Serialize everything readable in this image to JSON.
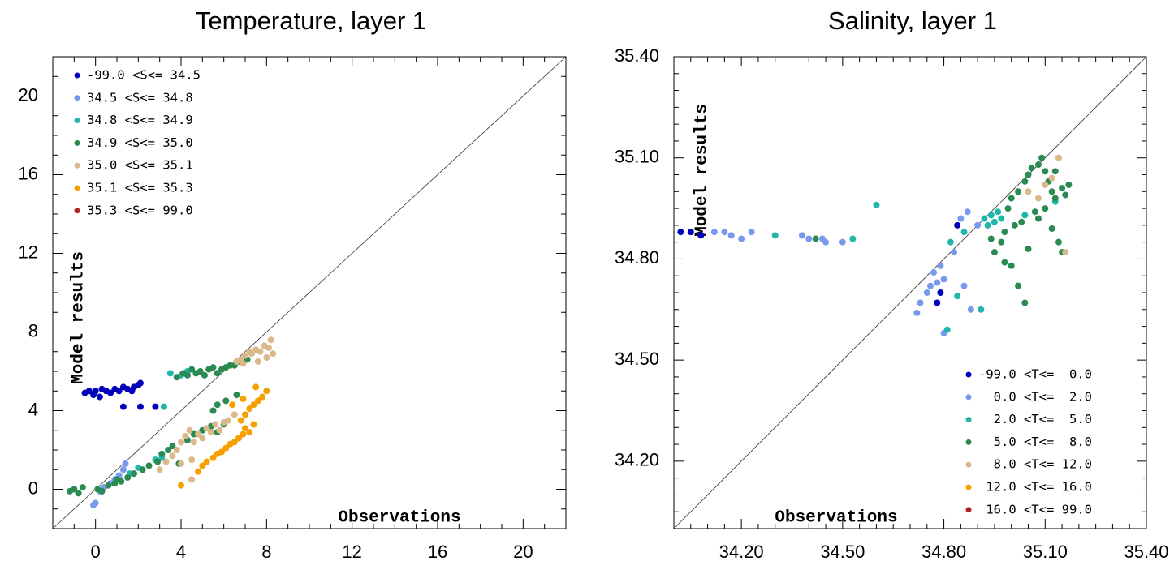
{
  "chart_data": [
    {
      "type": "scatter",
      "title": "Temperature, layer 1",
      "xlabel": "Observations",
      "ylabel": "Model results",
      "xlim": [
        -2,
        22
      ],
      "ylim": [
        -2,
        22
      ],
      "xticks": [
        "0",
        "4",
        "8",
        "12",
        "16",
        "20"
      ],
      "xtick_values": [
        0,
        4,
        8,
        12,
        16,
        20
      ],
      "yticks": [
        "0",
        "4",
        "8",
        "12",
        "16",
        "20"
      ],
      "ytick_values": [
        0,
        4,
        8,
        12,
        16,
        20
      ],
      "minor_step": 1,
      "legend_position": "top-left",
      "identity_line": true,
      "grid": false,
      "series": [
        {
          "name": "-99.0 <S<= 34.5",
          "color": "#0000bb",
          "points": [
            [
              -0.5,
              4.9
            ],
            [
              -0.3,
              5.0
            ],
            [
              -0.1,
              4.8
            ],
            [
              0.0,
              5.0
            ],
            [
              0.2,
              4.7
            ],
            [
              0.3,
              5.1
            ],
            [
              0.5,
              5.0
            ],
            [
              0.7,
              4.9
            ],
            [
              0.9,
              5.1
            ],
            [
              1.1,
              5.0
            ],
            [
              1.3,
              5.2
            ],
            [
              1.5,
              5.1
            ],
            [
              1.7,
              5.0
            ],
            [
              1.8,
              5.2
            ],
            [
              2.0,
              5.3
            ],
            [
              2.1,
              5.4
            ],
            [
              1.3,
              4.2
            ],
            [
              2.1,
              4.2
            ],
            [
              2.8,
              4.2
            ]
          ]
        },
        {
          "name": "34.5 <S<= 34.8",
          "color": "#7799ee",
          "points": [
            [
              -0.1,
              -0.8
            ],
            [
              0.0,
              -0.7
            ],
            [
              0.2,
              -0.1
            ],
            [
              0.4,
              0.1
            ],
            [
              0.7,
              0.3
            ],
            [
              0.9,
              0.5
            ],
            [
              1.1,
              0.7
            ],
            [
              1.3,
              1.0
            ],
            [
              1.4,
              1.3
            ]
          ]
        },
        {
          "name": "34.8 <S<= 34.9",
          "color": "#22b5aa",
          "points": [
            [
              1.6,
              0.8
            ],
            [
              2.0,
              1.1
            ],
            [
              2.8,
              1.5
            ],
            [
              3.1,
              1.6
            ],
            [
              3.2,
              4.2
            ],
            [
              3.5,
              5.9
            ],
            [
              4.0,
              5.8
            ],
            [
              4.3,
              6.0
            ]
          ]
        },
        {
          "name": "34.9 <S<= 35.0",
          "color": "#2b8a52",
          "points": [
            [
              -1.2,
              -0.1
            ],
            [
              -1.0,
              0.0
            ],
            [
              -0.8,
              -0.2
            ],
            [
              -0.6,
              0.1
            ],
            [
              0.1,
              0.0
            ],
            [
              0.3,
              -0.1
            ],
            [
              0.6,
              0.2
            ],
            [
              0.9,
              0.3
            ],
            [
              1.0,
              0.5
            ],
            [
              1.2,
              0.4
            ],
            [
              1.5,
              0.6
            ],
            [
              1.8,
              0.8
            ],
            [
              2.2,
              1.0
            ],
            [
              2.5,
              1.2
            ],
            [
              2.9,
              1.4
            ],
            [
              3.1,
              1.8
            ],
            [
              3.4,
              2.0
            ],
            [
              3.6,
              2.2
            ],
            [
              3.9,
              1.3
            ],
            [
              4.3,
              2.5
            ],
            [
              4.6,
              2.8
            ],
            [
              5.0,
              3.0
            ],
            [
              5.4,
              3.2
            ],
            [
              5.7,
              2.9
            ],
            [
              6.0,
              3.3
            ],
            [
              5.5,
              4.0
            ],
            [
              5.7,
              4.3
            ],
            [
              6.1,
              4.5
            ],
            [
              6.6,
              4.8
            ],
            [
              3.8,
              5.7
            ],
            [
              4.1,
              5.9
            ],
            [
              4.3,
              5.8
            ],
            [
              4.5,
              6.1
            ],
            [
              4.7,
              5.9
            ],
            [
              4.9,
              6.0
            ],
            [
              5.1,
              5.8
            ],
            [
              5.3,
              6.1
            ],
            [
              5.5,
              6.2
            ],
            [
              5.7,
              5.9
            ],
            [
              5.9,
              6.1
            ],
            [
              6.1,
              6.2
            ],
            [
              6.3,
              6.3
            ],
            [
              6.5,
              6.3
            ],
            [
              6.7,
              6.5
            ],
            [
              7.1,
              6.6
            ]
          ]
        },
        {
          "name": "35.0 <S<= 35.1",
          "color": "#dbb88a",
          "points": [
            [
              3.0,
              1.0
            ],
            [
              3.3,
              1.4
            ],
            [
              3.6,
              1.7
            ],
            [
              3.8,
              2.0
            ],
            [
              4.0,
              2.4
            ],
            [
              4.2,
              2.7
            ],
            [
              4.4,
              3.0
            ],
            [
              4.6,
              2.4
            ],
            [
              4.8,
              2.8
            ],
            [
              5.0,
              2.6
            ],
            [
              5.2,
              3.1
            ],
            [
              5.4,
              2.9
            ],
            [
              5.6,
              3.3
            ],
            [
              5.8,
              3.0
            ],
            [
              6.0,
              3.4
            ],
            [
              6.2,
              3.5
            ],
            [
              4.5,
              1.5
            ],
            [
              4.0,
              1.3
            ],
            [
              4.5,
              0.5
            ],
            [
              6.5,
              3.8
            ],
            [
              6.8,
              6.6
            ],
            [
              7.0,
              6.8
            ],
            [
              7.2,
              7.0
            ],
            [
              7.3,
              6.9
            ],
            [
              7.5,
              7.1
            ],
            [
              7.7,
              7.0
            ],
            [
              7.9,
              7.3
            ],
            [
              8.1,
              7.2
            ],
            [
              8.2,
              7.6
            ],
            [
              8.0,
              6.7
            ],
            [
              7.6,
              6.5
            ],
            [
              6.9,
              6.4
            ],
            [
              6.6,
              6.5
            ],
            [
              8.3,
              6.9
            ]
          ]
        },
        {
          "name": "35.1 <S<= 35.3",
          "color": "#f5a000",
          "points": [
            [
              4.0,
              0.2
            ],
            [
              4.8,
              0.9
            ],
            [
              5.0,
              1.2
            ],
            [
              5.2,
              1.4
            ],
            [
              5.5,
              1.6
            ],
            [
              5.7,
              1.8
            ],
            [
              5.9,
              1.9
            ],
            [
              6.1,
              2.1
            ],
            [
              6.3,
              2.3
            ],
            [
              6.5,
              2.4
            ],
            [
              6.7,
              2.6
            ],
            [
              6.9,
              2.8
            ],
            [
              7.0,
              3.1
            ],
            [
              7.2,
              2.9
            ],
            [
              7.4,
              3.3
            ],
            [
              6.8,
              3.5
            ],
            [
              7.0,
              3.8
            ],
            [
              7.2,
              4.1
            ],
            [
              7.4,
              4.3
            ],
            [
              7.6,
              4.5
            ],
            [
              7.8,
              4.7
            ],
            [
              8.0,
              5.0
            ],
            [
              7.5,
              5.2
            ],
            [
              6.4,
              4.3
            ],
            [
              6.9,
              4.6
            ]
          ]
        },
        {
          "name": "35.3 <S<= 99.0",
          "color": "#b22222",
          "points": []
        }
      ]
    },
    {
      "type": "scatter",
      "title": "Salinity, layer 1",
      "xlabel": "Observations",
      "ylabel": "Model results",
      "xlim": [
        34.0,
        35.4
      ],
      "ylim": [
        34.0,
        35.4
      ],
      "xticks": [
        "34.20",
        "34.50",
        "34.80",
        "35.10",
        "35.40"
      ],
      "xtick_values": [
        34.2,
        34.5,
        34.8,
        35.1,
        35.4
      ],
      "yticks": [
        "34.20",
        "34.50",
        "34.80",
        "35.10",
        "35.40"
      ],
      "ytick_values": [
        34.2,
        34.5,
        34.8,
        35.1,
        35.4
      ],
      "minor_step": 0.05,
      "legend_position": "bottom-right",
      "identity_line": true,
      "grid": false,
      "series": [
        {
          "name": "-99.0 <T<=  0.0",
          "color": "#0000bb",
          "points": [
            [
              34.02,
              34.88
            ],
            [
              34.05,
              34.88
            ],
            [
              34.08,
              34.87
            ],
            [
              34.79,
              34.7
            ],
            [
              34.78,
              34.67
            ],
            [
              34.84,
              34.9
            ]
          ]
        },
        {
          "name": "  0.0 <T<=  2.0",
          "color": "#7799ee",
          "points": [
            [
              34.12,
              34.88
            ],
            [
              34.15,
              34.88
            ],
            [
              34.17,
              34.87
            ],
            [
              34.2,
              34.86
            ],
            [
              34.23,
              34.88
            ],
            [
              34.38,
              34.87
            ],
            [
              34.4,
              34.86
            ],
            [
              34.44,
              34.86
            ],
            [
              34.45,
              34.85
            ],
            [
              34.5,
              34.85
            ],
            [
              34.72,
              34.64
            ],
            [
              34.73,
              34.67
            ],
            [
              34.75,
              34.7
            ],
            [
              34.76,
              34.72
            ],
            [
              34.78,
              34.73
            ],
            [
              34.77,
              34.76
            ],
            [
              34.79,
              34.78
            ],
            [
              34.8,
              34.74
            ],
            [
              34.8,
              34.58
            ],
            [
              34.83,
              34.82
            ],
            [
              34.86,
              34.72
            ],
            [
              34.85,
              34.92
            ],
            [
              34.87,
              34.94
            ],
            [
              34.88,
              34.65
            ],
            [
              34.9,
              34.9
            ]
          ]
        },
        {
          "name": "  2.0 <T<=  5.0",
          "color": "#22b5aa",
          "points": [
            [
              34.3,
              34.87
            ],
            [
              34.53,
              34.86
            ],
            [
              34.6,
              34.96
            ],
            [
              34.81,
              34.59
            ],
            [
              34.82,
              34.85
            ],
            [
              34.84,
              34.69
            ],
            [
              34.86,
              34.88
            ],
            [
              34.91,
              34.65
            ],
            [
              34.92,
              34.92
            ],
            [
              34.93,
              34.9
            ],
            [
              34.94,
              34.93
            ],
            [
              34.95,
              34.91
            ],
            [
              34.96,
              34.94
            ],
            [
              34.97,
              34.92
            ],
            [
              35.04,
              34.93
            ],
            [
              35.13,
              34.97
            ]
          ]
        },
        {
          "name": "  5.0 <T<=  8.0",
          "color": "#2b8a52",
          "points": [
            [
              34.42,
              34.86
            ],
            [
              34.94,
              34.86
            ],
            [
              34.95,
              34.82
            ],
            [
              34.97,
              34.85
            ],
            [
              34.98,
              34.88
            ],
            [
              35.0,
              34.78
            ],
            [
              35.02,
              34.72
            ],
            [
              35.04,
              34.67
            ],
            [
              34.98,
              34.79
            ],
            [
              34.99,
              34.95
            ],
            [
              35.0,
              34.98
            ],
            [
              35.02,
              35.0
            ],
            [
              35.04,
              35.03
            ],
            [
              35.05,
              35.05
            ],
            [
              35.06,
              35.07
            ],
            [
              35.08,
              35.08
            ],
            [
              35.09,
              35.1
            ],
            [
              35.1,
              35.06
            ],
            [
              35.11,
              35.03
            ],
            [
              35.12,
              35.0
            ],
            [
              35.13,
              34.98
            ],
            [
              35.15,
              35.01
            ],
            [
              35.16,
              34.99
            ],
            [
              35.17,
              35.02
            ],
            [
              35.1,
              34.95
            ],
            [
              35.07,
              34.94
            ],
            [
              35.03,
              34.91
            ],
            [
              35.01,
              34.9
            ],
            [
              35.12,
              34.89
            ],
            [
              35.14,
              34.85
            ],
            [
              35.15,
              34.82
            ],
            [
              35.05,
              34.83
            ],
            [
              35.08,
              34.92
            ],
            [
              35.13,
              35.06
            ]
          ]
        },
        {
          "name": "  8.0 <T<= 12.0",
          "color": "#dbb88a",
          "points": [
            [
              35.05,
              35.0
            ],
            [
              35.08,
              34.98
            ],
            [
              35.1,
              35.02
            ],
            [
              35.12,
              35.04
            ],
            [
              35.14,
              35.1
            ],
            [
              35.16,
              34.82
            ]
          ]
        },
        {
          "name": " 12.0 <T<= 16.0",
          "color": "#f5a000",
          "points": []
        },
        {
          "name": " 16.0 <T<= 99.0",
          "color": "#b22222",
          "points": []
        }
      ]
    }
  ]
}
